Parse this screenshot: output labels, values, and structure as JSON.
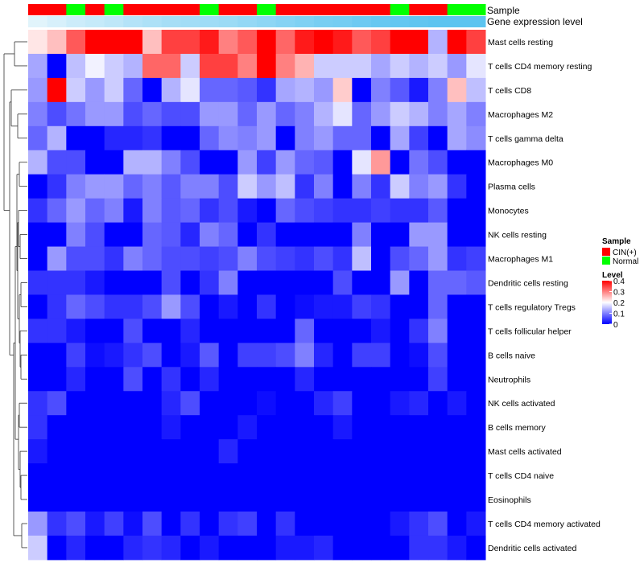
{
  "chart_data": {
    "type": "heatmap",
    "track_labels": [
      "Sample",
      "Gene expression level"
    ],
    "rows": [
      "Mast cells resting",
      "T cells CD4 memory resting",
      "T cells CD8",
      "Macrophages M2",
      "T cells gamma delta",
      "Macrophages M0",
      "Plasma cells",
      "Monocytes",
      "NK cells resting",
      "Macrophages M1",
      "Dendritic cells resting",
      "T cells regulatory  Tregs",
      "T cells follicular helper",
      "B cells naive",
      "Neutrophils",
      "NK cells activated",
      "B cells memory",
      "Mast cells activated",
      "T cells CD4 naive",
      "Eosinophils",
      "T cells CD4 memory activated",
      "Dendritic cells activated"
    ],
    "sample_groups": [
      "CIN(+)",
      "CIN(+)",
      "Normal",
      "CIN(+)",
      "Normal",
      "CIN(+)",
      "CIN(+)",
      "CIN(+)",
      "CIN(+)",
      "Normal",
      "CIN(+)",
      "CIN(+)",
      "Normal",
      "CIN(+)",
      "CIN(+)",
      "CIN(+)",
      "CIN(+)",
      "CIN(+)",
      "CIN(+)",
      "Normal",
      "CIN(+)",
      "CIN(+)",
      "Normal",
      "Normal"
    ],
    "expression_track": [
      0.02,
      0.05,
      0.08,
      0.1,
      0.12,
      0.15,
      0.17,
      0.19,
      0.2,
      0.21,
      0.22,
      0.24,
      0.26,
      0.28,
      0.3,
      0.32,
      0.33,
      0.35,
      0.37,
      0.38,
      0.39,
      0.4,
      0.4,
      0.4
    ],
    "values": [
      [
        0.22,
        0.25,
        0.33,
        0.4,
        0.4,
        0.4,
        0.25,
        0.35,
        0.35,
        0.38,
        0.3,
        0.33,
        0.4,
        0.32,
        0.38,
        0.4,
        0.38,
        0.33,
        0.35,
        0.4,
        0.4,
        0.14,
        0.4,
        0.35
      ],
      [
        0.13,
        0.0,
        0.15,
        0.19,
        0.16,
        0.14,
        0.32,
        0.32,
        0.16,
        0.35,
        0.35,
        0.3,
        0.4,
        0.3,
        0.26,
        0.16,
        0.16,
        0.16,
        0.13,
        0.16,
        0.14,
        0.16,
        0.12,
        0.18
      ],
      [
        0.12,
        0.4,
        0.16,
        0.12,
        0.16,
        0.08,
        0.0,
        0.14,
        0.18,
        0.08,
        0.08,
        0.07,
        0.04,
        0.13,
        0.14,
        0.12,
        0.24,
        0.0,
        0.1,
        0.07,
        0.02,
        0.1,
        0.25,
        0.15
      ],
      [
        0.1,
        0.06,
        0.09,
        0.12,
        0.12,
        0.06,
        0.08,
        0.06,
        0.06,
        0.12,
        0.12,
        0.08,
        0.12,
        0.08,
        0.1,
        0.14,
        0.18,
        0.08,
        0.12,
        0.16,
        0.14,
        0.1,
        0.13,
        0.1
      ],
      [
        0.08,
        0.14,
        0.0,
        0.0,
        0.03,
        0.03,
        0.04,
        0.0,
        0.0,
        0.08,
        0.11,
        0.1,
        0.12,
        0.0,
        0.1,
        0.12,
        0.08,
        0.08,
        0.0,
        0.13,
        0.05,
        0.0,
        0.13,
        0.11
      ],
      [
        0.14,
        0.06,
        0.06,
        0.0,
        0.0,
        0.14,
        0.14,
        0.1,
        0.06,
        0.0,
        0.0,
        0.12,
        0.05,
        0.12,
        0.08,
        0.07,
        0.0,
        0.18,
        0.28,
        0.0,
        0.09,
        0.06,
        0.0,
        0.0
      ],
      [
        0.0,
        0.04,
        0.1,
        0.12,
        0.12,
        0.08,
        0.1,
        0.07,
        0.1,
        0.1,
        0.06,
        0.16,
        0.12,
        0.15,
        0.04,
        0.1,
        0.0,
        0.1,
        0.04,
        0.16,
        0.1,
        0.12,
        0.04,
        0.0
      ],
      [
        0.04,
        0.08,
        0.12,
        0.08,
        0.1,
        0.02,
        0.1,
        0.07,
        0.08,
        0.04,
        0.06,
        0.02,
        0.0,
        0.08,
        0.06,
        0.05,
        0.04,
        0.04,
        0.05,
        0.04,
        0.04,
        0.07,
        0.0,
        0.0
      ],
      [
        0.0,
        0.0,
        0.1,
        0.06,
        0.0,
        0.0,
        0.08,
        0.07,
        0.03,
        0.1,
        0.08,
        0.0,
        0.04,
        0.0,
        0.0,
        0.0,
        0.0,
        0.1,
        0.0,
        0.0,
        0.12,
        0.12,
        0.0,
        0.0
      ],
      [
        0.0,
        0.12,
        0.06,
        0.06,
        0.04,
        0.1,
        0.08,
        0.06,
        0.06,
        0.05,
        0.06,
        0.1,
        0.06,
        0.05,
        0.04,
        0.06,
        0.04,
        0.15,
        0.0,
        0.06,
        0.08,
        0.12,
        0.04,
        0.05
      ],
      [
        0.04,
        0.04,
        0.04,
        0.02,
        0.0,
        0.0,
        0.0,
        0.06,
        0.0,
        0.04,
        0.1,
        0.0,
        0.0,
        0.0,
        0.0,
        0.0,
        0.06,
        0.0,
        0.0,
        0.12,
        0.0,
        0.08,
        0.08,
        0.07
      ],
      [
        0.0,
        0.04,
        0.08,
        0.06,
        0.04,
        0.04,
        0.06,
        0.12,
        0.06,
        0.0,
        0.02,
        0.0,
        0.04,
        0.0,
        0.01,
        0.02,
        0.02,
        0.05,
        0.04,
        0.0,
        0.0,
        0.08,
        0.0,
        0.0
      ],
      [
        0.04,
        0.04,
        0.02,
        0.0,
        0.0,
        0.06,
        0.0,
        0.0,
        0.03,
        0.0,
        0.0,
        0.0,
        0.0,
        0.0,
        0.08,
        0.0,
        0.0,
        0.0,
        0.02,
        0.0,
        0.04,
        0.1,
        0.0,
        0.0
      ],
      [
        0.0,
        0.0,
        0.05,
        0.01,
        0.02,
        0.04,
        0.06,
        0.0,
        0.02,
        0.07,
        0.0,
        0.05,
        0.05,
        0.06,
        0.1,
        0.03,
        0.0,
        0.05,
        0.05,
        0.0,
        0.01,
        0.06,
        0.0,
        0.0
      ],
      [
        0.0,
        0.0,
        0.03,
        0.0,
        0.0,
        0.06,
        0.0,
        0.04,
        0.0,
        0.03,
        0.0,
        0.0,
        0.0,
        0.0,
        0.03,
        0.0,
        0.0,
        0.0,
        0.0,
        0.0,
        0.0,
        0.05,
        0.0,
        0.0
      ],
      [
        0.04,
        0.06,
        0.0,
        0.0,
        0.0,
        0.0,
        0.0,
        0.03,
        0.06,
        0.0,
        0.0,
        0.0,
        0.01,
        0.0,
        0.0,
        0.03,
        0.05,
        0.0,
        0.0,
        0.02,
        0.03,
        0.0,
        0.02,
        0.0
      ],
      [
        0.04,
        0.0,
        0.0,
        0.0,
        0.0,
        0.0,
        0.0,
        0.02,
        0.0,
        0.0,
        0.0,
        0.02,
        0.0,
        0.0,
        0.0,
        0.0,
        0.02,
        0.0,
        0.0,
        0.0,
        0.0,
        0.0,
        0.0,
        0.0
      ],
      [
        0.02,
        0.0,
        0.0,
        0.0,
        0.0,
        0.0,
        0.0,
        0.0,
        0.0,
        0.0,
        0.03,
        0.0,
        0.0,
        0.0,
        0.0,
        0.0,
        0.0,
        0.0,
        0.0,
        0.0,
        0.0,
        0.0,
        0.0,
        0.0
      ],
      [
        0.0,
        0.0,
        0.0,
        0.0,
        0.0,
        0.0,
        0.0,
        0.0,
        0.0,
        0.0,
        0.0,
        0.0,
        0.0,
        0.0,
        0.0,
        0.0,
        0.0,
        0.0,
        0.0,
        0.0,
        0.0,
        0.0,
        0.0,
        0.0
      ],
      [
        0.0,
        0.0,
        0.0,
        0.0,
        0.0,
        0.0,
        0.0,
        0.0,
        0.0,
        0.0,
        0.0,
        0.0,
        0.0,
        0.0,
        0.0,
        0.0,
        0.0,
        0.0,
        0.0,
        0.0,
        0.0,
        0.0,
        0.0,
        0.0
      ],
      [
        0.12,
        0.04,
        0.06,
        0.02,
        0.05,
        0.01,
        0.06,
        0.0,
        0.04,
        0.0,
        0.04,
        0.05,
        0.0,
        0.04,
        0.0,
        0.0,
        0.0,
        0.0,
        0.0,
        0.02,
        0.04,
        0.06,
        0.0,
        0.02
      ],
      [
        0.16,
        0.0,
        0.03,
        0.0,
        0.0,
        0.03,
        0.04,
        0.03,
        0.0,
        0.02,
        0.0,
        0.0,
        0.0,
        0.02,
        0.02,
        0.03,
        0.0,
        0.0,
        0.0,
        0.0,
        0.04,
        0.04,
        0.02,
        0.0
      ]
    ],
    "color_scale": {
      "min": 0,
      "mid": 0.2,
      "max": 0.4,
      "low_color": "#0000ff",
      "mid_color": "#ffffff",
      "high_color": "#ff0000"
    },
    "legend_sample": {
      "title": "Sample",
      "items": [
        {
          "label": "CIN(+)",
          "color": "#ff0000"
        },
        {
          "label": "Normal",
          "color": "#00ff00"
        }
      ]
    },
    "legend_level": {
      "title": "Level",
      "ticks": [
        0.4,
        0.3,
        0.2,
        0.1,
        0
      ],
      "tick_labels": [
        "0.4",
        "0.3",
        "0.2",
        "0.1",
        "0"
      ]
    },
    "track_colors": {
      "low": "#e8f6fc",
      "high": "#5cc4f0"
    }
  }
}
